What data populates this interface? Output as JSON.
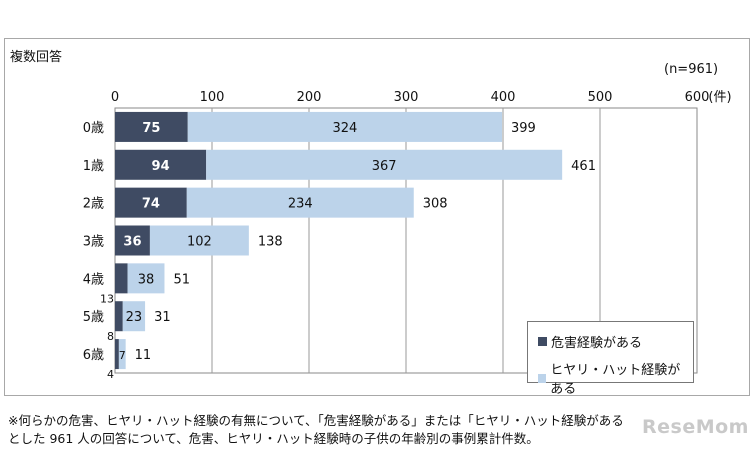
{
  "header": {
    "note_left": "複数回答",
    "note_right": "(n=961)"
  },
  "chart_data": {
    "type": "bar",
    "orientation": "horizontal",
    "stacked": true,
    "categories": [
      "0歳",
      "1歳",
      "2歳",
      "3歳",
      "4歳",
      "5歳",
      "6歳"
    ],
    "series": [
      {
        "name": "危害経験がある",
        "values": [
          75,
          94,
          74,
          36,
          13,
          8,
          4
        ],
        "color": "#3f4b63"
      },
      {
        "name": "ヒヤリ・ハット経験がある",
        "values": [
          324,
          367,
          234,
          102,
          38,
          23,
          7
        ],
        "color": "#bcd3ea"
      }
    ],
    "totals": [
      399,
      461,
      308,
      138,
      51,
      31,
      11
    ],
    "xlim": [
      0,
      600
    ],
    "xticks": [
      0,
      100,
      200,
      300,
      400,
      500,
      600
    ],
    "xunit": "(件)",
    "grid": true,
    "legend_position": "bottom-right"
  },
  "footnote": {
    "line1": "※何らかの危害、ヒヤリ・ハット経験の有無について、「危害経験がある」または「ヒヤリ・ハット経験がある",
    "line2": "とした 961 人の回答について、危害、ヒヤリ・ハット経験時の子供の年齢別の事例累計件数。"
  },
  "watermark": "ReseMom"
}
